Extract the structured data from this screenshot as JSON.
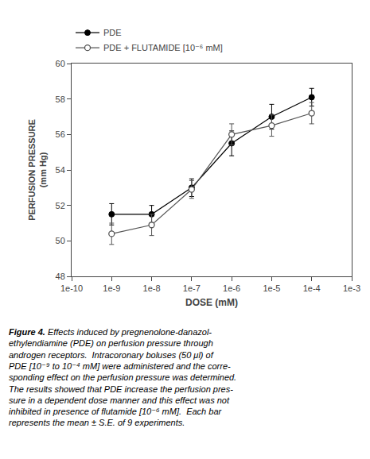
{
  "chart_data": {
    "type": "line",
    "x": [
      1e-09,
      1e-08,
      1e-07,
      1e-06,
      1e-05,
      0.0001
    ],
    "series": [
      {
        "name": "PDE",
        "color": "#000000",
        "marker": "filled circle",
        "values": [
          51.5,
          51.5,
          53.0,
          55.5,
          57.0,
          58.1
        ],
        "error": [
          0.6,
          0.5,
          0.5,
          0.7,
          0.7,
          0.5
        ]
      },
      {
        "name": "PDE + FLUTAMIDE [10⁻⁶ mM]",
        "color": "#555555",
        "marker": "open circle",
        "values": [
          50.4,
          50.9,
          52.9,
          56.0,
          56.5,
          57.2
        ],
        "error": [
          0.6,
          0.6,
          0.5,
          0.6,
          0.6,
          0.6
        ]
      }
    ],
    "xlabel": "DOSE (mM)",
    "ylabel": "PERFUSION PRESSURE\n(mm Hg)",
    "log": "x",
    "xlim": [
      1e-10,
      0.001
    ],
    "xticks": [
      {
        "value": 1e-10,
        "label": "1e-10"
      },
      {
        "value": 1e-09,
        "label": "1e-9"
      },
      {
        "value": 1e-08,
        "label": "1e-8"
      },
      {
        "value": 1e-07,
        "label": "1e-7"
      },
      {
        "value": 1e-06,
        "label": "1e-6"
      },
      {
        "value": 1e-05,
        "label": "1e-5"
      },
      {
        "value": 0.0001,
        "label": "1e-4"
      },
      {
        "value": 0.001,
        "label": "1e-3"
      }
    ],
    "ylim": [
      48,
      60
    ],
    "yticks": [
      48,
      50,
      52,
      54,
      56,
      58,
      60
    ],
    "grid": false,
    "legend": "upper left",
    "annotations": [
      "Figure 4. Effects induced by pregnenolone-danazol-",
      "ethylendiamine (PDE) on perfusion pressure through",
      "androgen receptors.  Intracoronary boluses (50 μl) of",
      "PDE [10⁻⁹ to 10⁻⁴ mM] were administered and the corre-",
      "sponding effect on the perfusion pressure was determined.",
      "The results showed that PDE increase the perfusion pres-",
      "sure in a dependent dose manner and this effect was not",
      "inhibited in presence of flutamide [10⁻⁶ mM].  Each bar",
      "represents the mean ± S.E. of 9 experiments."
    ]
  }
}
